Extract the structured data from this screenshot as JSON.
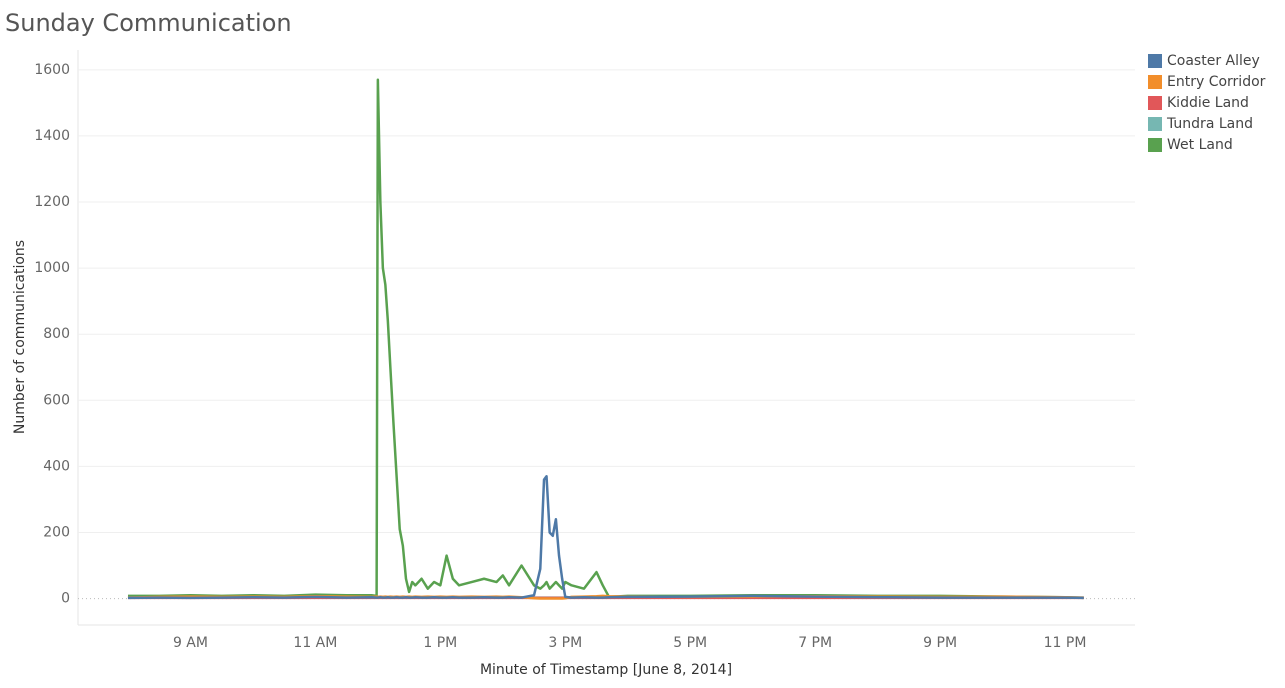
{
  "chart_data": {
    "type": "line",
    "title": "Sunday Communication",
    "x_label": "Minute of Timestamp [June 8, 2014]",
    "y_label": "Number of communications",
    "x": [
      8.0,
      8.5,
      9,
      9.5,
      10,
      10.5,
      11,
      11.5,
      11.9,
      11.98,
      12.0,
      12.04,
      12.08,
      12.12,
      12.16,
      12.2,
      12.25,
      12.3,
      12.35,
      12.4,
      12.45,
      12.5,
      12.55,
      12.6,
      12.7,
      12.8,
      12.9,
      13.0,
      13.1,
      13.2,
      13.3,
      13.5,
      13.7,
      13.9,
      14.0,
      14.1,
      14.3,
      14.5,
      14.6,
      14.66,
      14.7,
      14.75,
      14.8,
      14.85,
      14.9,
      14.95,
      15.0,
      15.1,
      15.3,
      15.5,
      15.6,
      15.7,
      16,
      17,
      18,
      19,
      20,
      21,
      22,
      23,
      23.3
    ],
    "series": [
      {
        "name": "Coaster Alley",
        "color": "#4e79a7",
        "values": [
          2,
          3,
          2,
          3,
          4,
          3,
          5,
          3,
          4,
          3,
          3,
          4,
          3,
          3,
          4,
          3,
          3,
          4,
          3,
          3,
          4,
          3,
          3,
          4,
          3,
          3,
          4,
          3,
          3,
          4,
          3,
          3,
          4,
          3,
          3,
          4,
          3,
          10,
          90,
          360,
          370,
          200,
          190,
          240,
          130,
          60,
          5,
          3,
          4,
          3,
          3,
          4,
          5,
          6,
          8,
          6,
          4,
          3,
          3,
          3,
          2
        ]
      },
      {
        "name": "Entry Corridor",
        "color": "#f28e2b",
        "values": [
          3,
          5,
          6,
          5,
          6,
          5,
          7,
          6,
          5,
          6,
          5,
          6,
          5,
          6,
          5,
          6,
          5,
          6,
          5,
          6,
          5,
          6,
          5,
          6,
          5,
          6,
          5,
          6,
          5,
          6,
          5,
          6,
          5,
          6,
          5,
          6,
          4,
          1,
          0,
          0,
          0,
          0,
          0,
          0,
          0,
          0,
          1,
          5,
          6,
          7,
          8,
          7,
          6,
          5,
          6,
          7,
          6,
          5,
          6,
          4,
          3
        ]
      },
      {
        "name": "Kiddie Land",
        "color": "#e15759",
        "values": [
          2,
          2,
          2,
          2,
          2,
          2,
          2,
          2,
          2,
          2,
          2,
          2,
          2,
          2,
          2,
          2,
          2,
          2,
          2,
          2,
          2,
          2,
          2,
          2,
          2,
          2,
          2,
          2,
          2,
          2,
          2,
          2,
          2,
          2,
          2,
          2,
          2,
          2,
          2,
          2,
          2,
          2,
          2,
          2,
          2,
          2,
          2,
          2,
          2,
          2,
          2,
          2,
          2,
          2,
          2,
          2,
          2,
          2,
          2,
          2,
          2
        ]
      },
      {
        "name": "Tundra Land",
        "color": "#76b7b2",
        "values": [
          3,
          3,
          3,
          3,
          3,
          3,
          3,
          3,
          3,
          3,
          3,
          3,
          3,
          3,
          3,
          3,
          3,
          3,
          3,
          3,
          3,
          3,
          3,
          3,
          3,
          3,
          3,
          3,
          3,
          3,
          3,
          3,
          3,
          3,
          3,
          3,
          3,
          3,
          3,
          3,
          3,
          3,
          3,
          3,
          3,
          3,
          3,
          3,
          3,
          3,
          3,
          3,
          3,
          3,
          3,
          3,
          3,
          3,
          3,
          3,
          3
        ]
      },
      {
        "name": "Wet Land",
        "color": "#59a14f",
        "values": [
          8,
          8,
          10,
          8,
          10,
          8,
          12,
          10,
          10,
          8,
          1570,
          1200,
          1000,
          950,
          840,
          700,
          530,
          370,
          210,
          160,
          60,
          20,
          50,
          40,
          60,
          30,
          50,
          40,
          130,
          60,
          40,
          50,
          60,
          50,
          70,
          40,
          100,
          40,
          30,
          40,
          50,
          30,
          40,
          50,
          40,
          30,
          50,
          40,
          30,
          80,
          40,
          5,
          8,
          8,
          10,
          10,
          8,
          8,
          6,
          4,
          2
        ]
      }
    ],
    "xlim": [
      7.2,
      24.12
    ],
    "xticks": [
      {
        "value": 9,
        "label": "9 AM"
      },
      {
        "value": 11,
        "label": "11 AM"
      },
      {
        "value": 13,
        "label": "1 PM"
      },
      {
        "value": 15,
        "label": "3 PM"
      },
      {
        "value": 17,
        "label": "5 PM"
      },
      {
        "value": 19,
        "label": "7 PM"
      },
      {
        "value": 21,
        "label": "9 PM"
      },
      {
        "value": 23,
        "label": "11 PM"
      }
    ],
    "ylim": [
      -80,
      1660
    ],
    "yticks": [
      0,
      200,
      400,
      600,
      800,
      1000,
      1200,
      1400,
      1600
    ],
    "grid": true,
    "legend": "right"
  }
}
